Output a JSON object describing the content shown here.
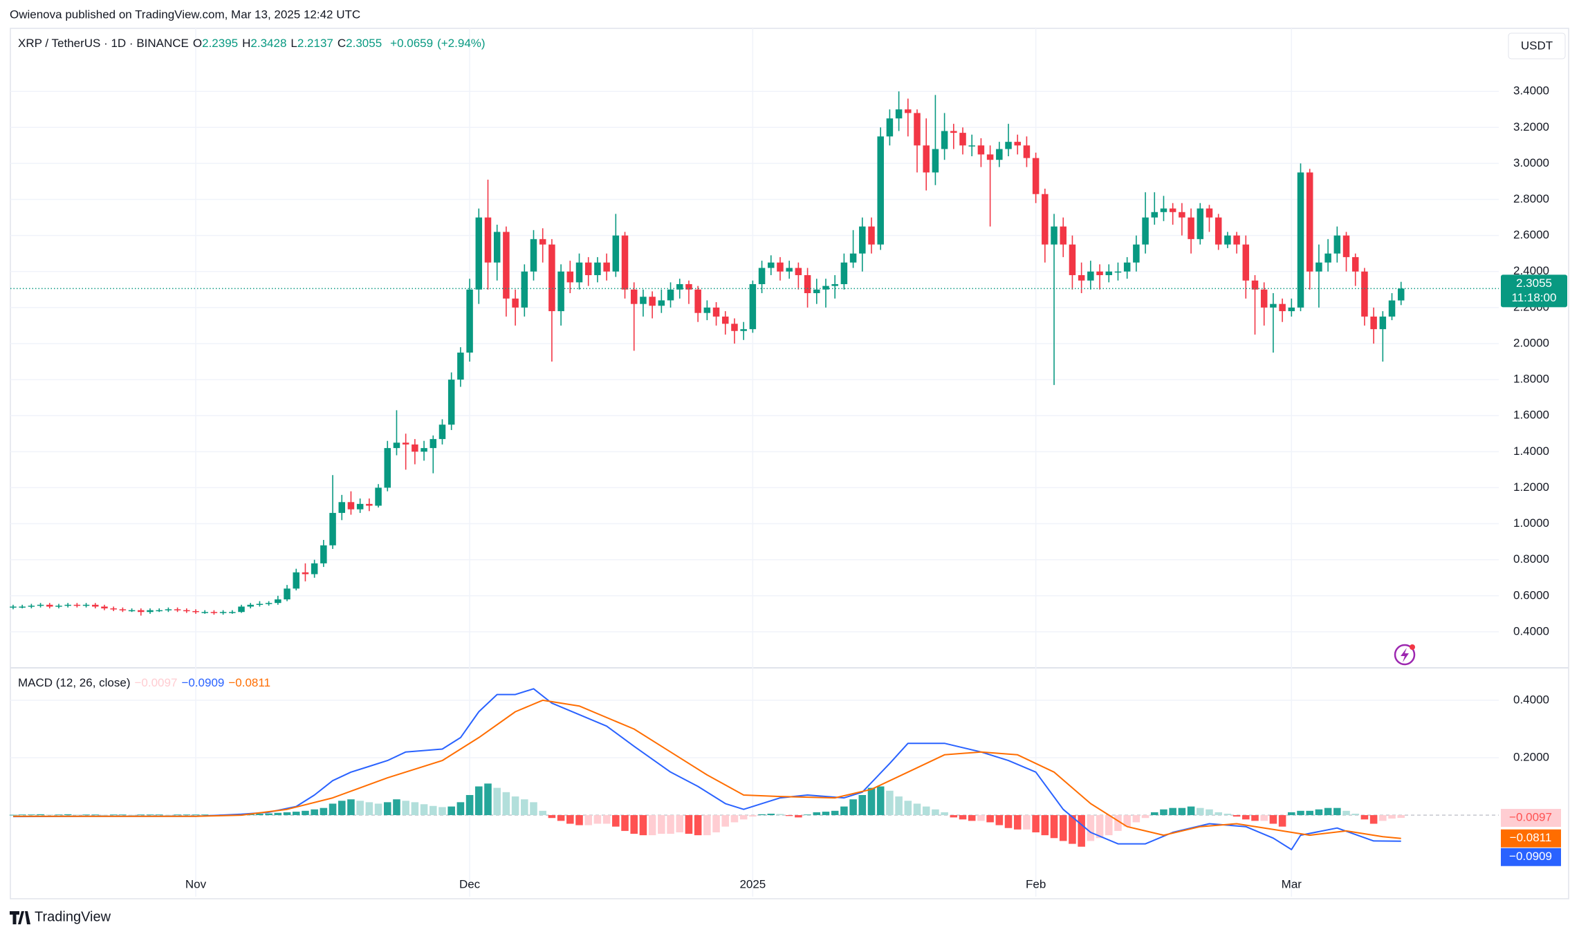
{
  "header": {
    "publisher": "Owienova published on TradingView.com, Mar 13, 2025 12:42 UTC"
  },
  "footer": {
    "brand": "TradingView"
  },
  "chart_data": {
    "type": "candlestick",
    "symbol": "XRP / TetherUS · 1D · BINANCE",
    "currency": "USDT",
    "ohlc_legend": [
      {
        "label": "O",
        "value": "2.2395"
      },
      {
        "label": "H",
        "value": "2.3428"
      },
      {
        "label": "L",
        "value": "2.2137"
      },
      {
        "label": "C",
        "value": "2.3055"
      }
    ],
    "change": "+0.0659",
    "change_pct": "(+2.94%)",
    "up_color": "#089981",
    "down_color": "#f23645",
    "grid": true,
    "candles": [
      [
        0.535,
        0.55,
        0.525,
        0.54
      ],
      [
        0.54,
        0.55,
        0.53,
        0.54
      ],
      [
        0.54,
        0.555,
        0.53,
        0.545
      ],
      [
        0.545,
        0.56,
        0.535,
        0.55
      ],
      [
        0.55,
        0.56,
        0.53,
        0.54
      ],
      [
        0.54,
        0.555,
        0.53,
        0.545
      ],
      [
        0.545,
        0.56,
        0.535,
        0.55
      ],
      [
        0.55,
        0.56,
        0.535,
        0.545
      ],
      [
        0.545,
        0.56,
        0.535,
        0.55
      ],
      [
        0.55,
        0.56,
        0.53,
        0.54
      ],
      [
        0.54,
        0.55,
        0.52,
        0.53
      ],
      [
        0.53,
        0.54,
        0.515,
        0.525
      ],
      [
        0.525,
        0.535,
        0.51,
        0.52
      ],
      [
        0.52,
        0.53,
        0.51,
        0.52
      ],
      [
        0.52,
        0.53,
        0.49,
        0.51
      ],
      [
        0.51,
        0.53,
        0.5,
        0.52
      ],
      [
        0.52,
        0.53,
        0.51,
        0.52
      ],
      [
        0.52,
        0.535,
        0.51,
        0.525
      ],
      [
        0.525,
        0.535,
        0.51,
        0.52
      ],
      [
        0.52,
        0.53,
        0.505,
        0.515
      ],
      [
        0.515,
        0.525,
        0.5,
        0.51
      ],
      [
        0.51,
        0.52,
        0.5,
        0.51
      ],
      [
        0.51,
        0.52,
        0.495,
        0.505
      ],
      [
        0.505,
        0.52,
        0.495,
        0.51
      ],
      [
        0.51,
        0.52,
        0.5,
        0.51
      ],
      [
        0.51,
        0.55,
        0.505,
        0.54
      ],
      [
        0.54,
        0.56,
        0.53,
        0.55
      ],
      [
        0.55,
        0.57,
        0.54,
        0.555
      ],
      [
        0.555,
        0.57,
        0.545,
        0.56
      ],
      [
        0.56,
        0.6,
        0.55,
        0.58
      ],
      [
        0.58,
        0.66,
        0.57,
        0.64
      ],
      [
        0.64,
        0.75,
        0.63,
        0.73
      ],
      [
        0.73,
        0.78,
        0.68,
        0.72
      ],
      [
        0.72,
        0.8,
        0.7,
        0.78
      ],
      [
        0.78,
        0.91,
        0.76,
        0.88
      ],
      [
        0.88,
        1.27,
        0.86,
        1.06
      ],
      [
        1.06,
        1.16,
        1.02,
        1.12
      ],
      [
        1.12,
        1.18,
        1.05,
        1.08
      ],
      [
        1.08,
        1.14,
        1.06,
        1.11
      ],
      [
        1.11,
        1.14,
        1.07,
        1.1
      ],
      [
        1.1,
        1.22,
        1.09,
        1.2
      ],
      [
        1.2,
        1.46,
        1.18,
        1.42
      ],
      [
        1.42,
        1.63,
        1.38,
        1.45
      ],
      [
        1.45,
        1.5,
        1.3,
        1.44
      ],
      [
        1.44,
        1.47,
        1.33,
        1.4
      ],
      [
        1.4,
        1.46,
        1.35,
        1.42
      ],
      [
        1.42,
        1.49,
        1.28,
        1.47
      ],
      [
        1.47,
        1.58,
        1.44,
        1.55
      ],
      [
        1.55,
        1.84,
        1.52,
        1.8
      ],
      [
        1.8,
        1.98,
        1.76,
        1.95
      ],
      [
        1.95,
        2.36,
        1.9,
        2.3
      ],
      [
        2.3,
        2.75,
        2.22,
        2.7
      ],
      [
        2.7,
        2.91,
        2.3,
        2.45
      ],
      [
        2.45,
        2.66,
        2.35,
        2.62
      ],
      [
        2.62,
        2.65,
        2.15,
        2.25
      ],
      [
        2.25,
        2.3,
        2.1,
        2.2
      ],
      [
        2.2,
        2.44,
        2.15,
        2.4
      ],
      [
        2.4,
        2.63,
        2.35,
        2.58
      ],
      [
        2.58,
        2.64,
        2.45,
        2.55
      ],
      [
        2.55,
        2.58,
        1.9,
        2.18
      ],
      [
        2.18,
        2.44,
        2.1,
        2.4
      ],
      [
        2.4,
        2.46,
        2.28,
        2.34
      ],
      [
        2.34,
        2.5,
        2.3,
        2.45
      ],
      [
        2.45,
        2.48,
        2.32,
        2.38
      ],
      [
        2.38,
        2.48,
        2.34,
        2.45
      ],
      [
        2.45,
        2.5,
        2.35,
        2.4
      ],
      [
        2.4,
        2.72,
        2.37,
        2.6
      ],
      [
        2.6,
        2.62,
        2.25,
        2.3
      ],
      [
        2.3,
        2.34,
        1.96,
        2.22
      ],
      [
        2.22,
        2.3,
        2.15,
        2.26
      ],
      [
        2.26,
        2.29,
        2.14,
        2.21
      ],
      [
        2.21,
        2.3,
        2.17,
        2.24
      ],
      [
        2.24,
        2.34,
        2.2,
        2.3
      ],
      [
        2.3,
        2.36,
        2.25,
        2.33
      ],
      [
        2.33,
        2.35,
        2.22,
        2.3
      ],
      [
        2.3,
        2.32,
        2.12,
        2.17
      ],
      [
        2.17,
        2.24,
        2.13,
        2.2
      ],
      [
        2.2,
        2.23,
        2.1,
        2.15
      ],
      [
        2.15,
        2.18,
        2.05,
        2.11
      ],
      [
        2.11,
        2.14,
        2.0,
        2.07
      ],
      [
        2.07,
        2.12,
        2.02,
        2.08
      ],
      [
        2.08,
        2.35,
        2.06,
        2.33
      ],
      [
        2.33,
        2.46,
        2.28,
        2.42
      ],
      [
        2.42,
        2.49,
        2.38,
        2.45
      ],
      [
        2.45,
        2.48,
        2.35,
        2.4
      ],
      [
        2.4,
        2.46,
        2.36,
        2.42
      ],
      [
        2.42,
        2.45,
        2.3,
        2.38
      ],
      [
        2.38,
        2.42,
        2.2,
        2.28
      ],
      [
        2.28,
        2.36,
        2.22,
        2.3
      ],
      [
        2.3,
        2.36,
        2.2,
        2.32
      ],
      [
        2.32,
        2.38,
        2.25,
        2.33
      ],
      [
        2.33,
        2.5,
        2.3,
        2.45
      ],
      [
        2.45,
        2.63,
        2.42,
        2.5
      ],
      [
        2.5,
        2.7,
        2.4,
        2.65
      ],
      [
        2.65,
        2.7,
        2.5,
        2.55
      ],
      [
        2.55,
        3.2,
        2.52,
        3.15
      ],
      [
        3.15,
        3.3,
        3.1,
        3.25
      ],
      [
        3.25,
        3.4,
        3.18,
        3.3
      ],
      [
        3.3,
        3.36,
        3.15,
        3.28
      ],
      [
        3.28,
        3.3,
        2.95,
        3.1
      ],
      [
        3.1,
        3.25,
        2.85,
        2.95
      ],
      [
        2.95,
        3.38,
        2.88,
        3.08
      ],
      [
        3.08,
        3.28,
        3.02,
        3.18
      ],
      [
        3.18,
        3.22,
        3.08,
        3.17
      ],
      [
        3.17,
        3.2,
        3.05,
        3.1
      ],
      [
        3.1,
        3.16,
        3.04,
        3.1
      ],
      [
        3.1,
        3.14,
        2.98,
        3.05
      ],
      [
        3.05,
        3.1,
        2.65,
        3.02
      ],
      [
        3.02,
        3.12,
        2.98,
        3.08
      ],
      [
        3.08,
        3.22,
        3.04,
        3.12
      ],
      [
        3.12,
        3.16,
        3.05,
        3.1
      ],
      [
        3.1,
        3.15,
        2.98,
        3.03
      ],
      [
        3.03,
        3.06,
        2.78,
        2.83
      ],
      [
        2.83,
        2.86,
        2.45,
        2.55
      ],
      [
        2.55,
        2.72,
        1.77,
        2.65
      ],
      [
        2.65,
        2.7,
        2.48,
        2.55
      ],
      [
        2.55,
        2.6,
        2.3,
        2.38
      ],
      [
        2.38,
        2.45,
        2.28,
        2.35
      ],
      [
        2.35,
        2.46,
        2.3,
        2.4
      ],
      [
        2.4,
        2.44,
        2.3,
        2.38
      ],
      [
        2.38,
        2.44,
        2.34,
        2.4
      ],
      [
        2.4,
        2.45,
        2.35,
        2.4
      ],
      [
        2.4,
        2.48,
        2.36,
        2.45
      ],
      [
        2.45,
        2.6,
        2.4,
        2.55
      ],
      [
        2.55,
        2.84,
        2.5,
        2.7
      ],
      [
        2.7,
        2.84,
        2.66,
        2.73
      ],
      [
        2.73,
        2.82,
        2.68,
        2.75
      ],
      [
        2.75,
        2.78,
        2.66,
        2.73
      ],
      [
        2.73,
        2.78,
        2.6,
        2.7
      ],
      [
        2.7,
        2.75,
        2.5,
        2.58
      ],
      [
        2.58,
        2.78,
        2.55,
        2.75
      ],
      [
        2.75,
        2.77,
        2.62,
        2.7
      ],
      [
        2.7,
        2.72,
        2.52,
        2.55
      ],
      [
        2.55,
        2.62,
        2.53,
        2.6
      ],
      [
        2.6,
        2.62,
        2.5,
        2.55
      ],
      [
        2.55,
        2.6,
        2.25,
        2.35
      ],
      [
        2.35,
        2.38,
        2.05,
        2.3
      ],
      [
        2.3,
        2.34,
        2.1,
        2.2
      ],
      [
        2.2,
        2.28,
        1.95,
        2.22
      ],
      [
        2.22,
        2.25,
        2.12,
        2.18
      ],
      [
        2.18,
        2.25,
        2.15,
        2.2
      ],
      [
        2.2,
        3.0,
        2.18,
        2.95
      ],
      [
        2.95,
        2.97,
        2.3,
        2.4
      ],
      [
        2.4,
        2.55,
        2.2,
        2.45
      ],
      [
        2.45,
        2.58,
        2.4,
        2.5
      ],
      [
        2.5,
        2.65,
        2.45,
        2.6
      ],
      [
        2.6,
        2.62,
        2.4,
        2.48
      ],
      [
        2.48,
        2.5,
        2.32,
        2.4
      ],
      [
        2.4,
        2.42,
        2.1,
        2.15
      ],
      [
        2.15,
        2.2,
        2.0,
        2.08
      ],
      [
        2.08,
        2.18,
        1.9,
        2.15
      ],
      [
        2.15,
        2.28,
        2.13,
        2.2395
      ],
      [
        2.2395,
        2.3428,
        2.2137,
        2.3055
      ]
    ],
    "xlim": [
      -0.3,
      162.7
    ],
    "xticks": [
      {
        "value": 20,
        "label": "Nov"
      },
      {
        "value": 50,
        "label": "Dec"
      },
      {
        "value": 81,
        "label": "2025"
      },
      {
        "value": 112,
        "label": "Feb"
      },
      {
        "value": 140,
        "label": "Mar"
      }
    ],
    "ylim": [
      0.2,
      3.75
    ],
    "yticks": [
      {
        "value": 0.4,
        "label": "0.4000"
      },
      {
        "value": 0.6,
        "label": "0.6000"
      },
      {
        "value": 0.8,
        "label": "0.8000"
      },
      {
        "value": 1.0,
        "label": "1.0000"
      },
      {
        "value": 1.2,
        "label": "1.2000"
      },
      {
        "value": 1.4,
        "label": "1.4000"
      },
      {
        "value": 1.6,
        "label": "1.6000"
      },
      {
        "value": 1.8,
        "label": "1.8000"
      },
      {
        "value": 2.0,
        "label": "2.0000"
      },
      {
        "value": 2.2,
        "label": "2.2000"
      },
      {
        "value": 2.4,
        "label": "2.4000"
      },
      {
        "value": 2.6,
        "label": "2.6000"
      },
      {
        "value": 2.8,
        "label": "2.8000"
      },
      {
        "value": 3.0,
        "label": "3.0000"
      },
      {
        "value": 3.2,
        "label": "3.2000"
      },
      {
        "value": 3.4,
        "label": "3.4000"
      }
    ],
    "last_price": {
      "value": 2.3055,
      "label": "2.3055",
      "countdown": "11:18:00"
    },
    "macd": {
      "title": "MACD (12, 26, close)",
      "ylim": [
        -0.284,
        0.513
      ],
      "yticks": [
        {
          "value": 0.4,
          "label": "0.4000"
        },
        {
          "value": 0.2,
          "label": "0.2000"
        }
      ],
      "histogram": {
        "colors": {
          "grow_above": "#26a69a",
          "fall_above": "#b2dfdb",
          "grow_below": "#ffcdd2",
          "fall_below": "#ff5252"
        },
        "last": {
          "value": -0.0097,
          "label": "−0.0097"
        },
        "values": [
          0.001,
          0.002,
          0.002,
          0.003,
          0.002,
          0.002,
          0.003,
          0.002,
          0.002,
          0.002,
          0.001,
          0.002,
          0.002,
          0.001,
          0.002,
          0.002,
          0.002,
          0.001,
          0.002,
          0.002,
          0.002,
          0.002,
          0.001,
          0.002,
          0.002,
          0.003,
          0.004,
          0.005,
          0.006,
          0.008,
          0.01,
          0.012,
          0.015,
          0.02,
          0.025,
          0.04,
          0.05,
          0.055,
          0.05,
          0.045,
          0.04,
          0.045,
          0.055,
          0.05,
          0.045,
          0.038,
          0.032,
          0.028,
          0.03,
          0.045,
          0.07,
          0.1,
          0.11,
          0.095,
          0.08,
          0.065,
          0.055,
          0.045,
          0.015,
          -0.01,
          -0.02,
          -0.03,
          -0.035,
          -0.035,
          -0.03,
          -0.03,
          -0.04,
          -0.055,
          -0.065,
          -0.07,
          -0.07,
          -0.065,
          -0.065,
          -0.06,
          -0.065,
          -0.07,
          -0.07,
          -0.06,
          -0.04,
          -0.025,
          -0.015,
          -0.005,
          0.003,
          0.005,
          0.004,
          -0.003,
          -0.008,
          0.002,
          0.01,
          0.012,
          0.015,
          0.03,
          0.055,
          0.07,
          0.095,
          0.1,
          0.085,
          0.065,
          0.05,
          0.04,
          0.03,
          0.02,
          0.01,
          -0.008,
          -0.015,
          -0.02,
          -0.02,
          -0.025,
          -0.035,
          -0.045,
          -0.05,
          -0.05,
          -0.06,
          -0.07,
          -0.08,
          -0.09,
          -0.1,
          -0.11,
          -0.09,
          -0.08,
          -0.07,
          -0.055,
          -0.04,
          -0.025,
          -0.01,
          0.01,
          0.02,
          0.025,
          0.025,
          0.03,
          0.025,
          0.02,
          0.01,
          0.005,
          -0.005,
          -0.015,
          -0.02,
          -0.02,
          -0.03,
          -0.04,
          0.01,
          0.015,
          0.015,
          0.02,
          0.025,
          0.025,
          0.015,
          0.005,
          -0.015,
          -0.03,
          -0.02,
          -0.012,
          -0.0097
        ]
      },
      "macd_line": {
        "color": "#2962ff",
        "last": {
          "value": -0.0909,
          "label": "−0.0909"
        },
        "x": [
          0,
          10,
          20,
          25,
          28,
          31,
          33,
          35,
          37,
          39,
          41,
          43,
          45,
          47,
          49,
          51,
          53,
          55,
          57,
          59,
          62,
          65,
          68,
          72,
          75,
          78,
          80,
          84,
          87,
          91,
          93,
          96,
          98,
          102,
          106,
          109,
          112,
          115,
          118,
          121,
          124,
          127,
          131,
          135,
          138,
          140,
          141,
          145,
          149,
          152
        ],
        "values": [
          -0.005,
          -0.004,
          -0.004,
          0.003,
          0.01,
          0.03,
          0.07,
          0.12,
          0.15,
          0.17,
          0.19,
          0.22,
          0.225,
          0.23,
          0.27,
          0.36,
          0.42,
          0.42,
          0.44,
          0.39,
          0.35,
          0.31,
          0.24,
          0.15,
          0.1,
          0.04,
          0.02,
          0.06,
          0.07,
          0.06,
          0.08,
          0.18,
          0.25,
          0.25,
          0.22,
          0.19,
          0.15,
          0.02,
          -0.06,
          -0.1,
          -0.1,
          -0.06,
          -0.03,
          -0.04,
          -0.08,
          -0.12,
          -0.07,
          -0.045,
          -0.09,
          -0.0909
        ]
      },
      "signal_line": {
        "color": "#ff6d00",
        "last": {
          "value": -0.0811,
          "label": "−0.0811"
        },
        "x": [
          0,
          20,
          25,
          30,
          35,
          41,
          47,
          51,
          55,
          58,
          62,
          68,
          72,
          76,
          80,
          84,
          90,
          94,
          98,
          102,
          106,
          110,
          114,
          118,
          122,
          126,
          130,
          134,
          138,
          142,
          146,
          150,
          152
        ],
        "values": [
          -0.004,
          -0.004,
          0.0,
          0.02,
          0.06,
          0.13,
          0.19,
          0.27,
          0.36,
          0.4,
          0.38,
          0.3,
          0.22,
          0.14,
          0.07,
          0.065,
          0.06,
          0.09,
          0.15,
          0.21,
          0.22,
          0.21,
          0.15,
          0.04,
          -0.04,
          -0.07,
          -0.04,
          -0.03,
          -0.05,
          -0.07,
          -0.055,
          -0.075,
          -0.0811
        ]
      }
    }
  }
}
